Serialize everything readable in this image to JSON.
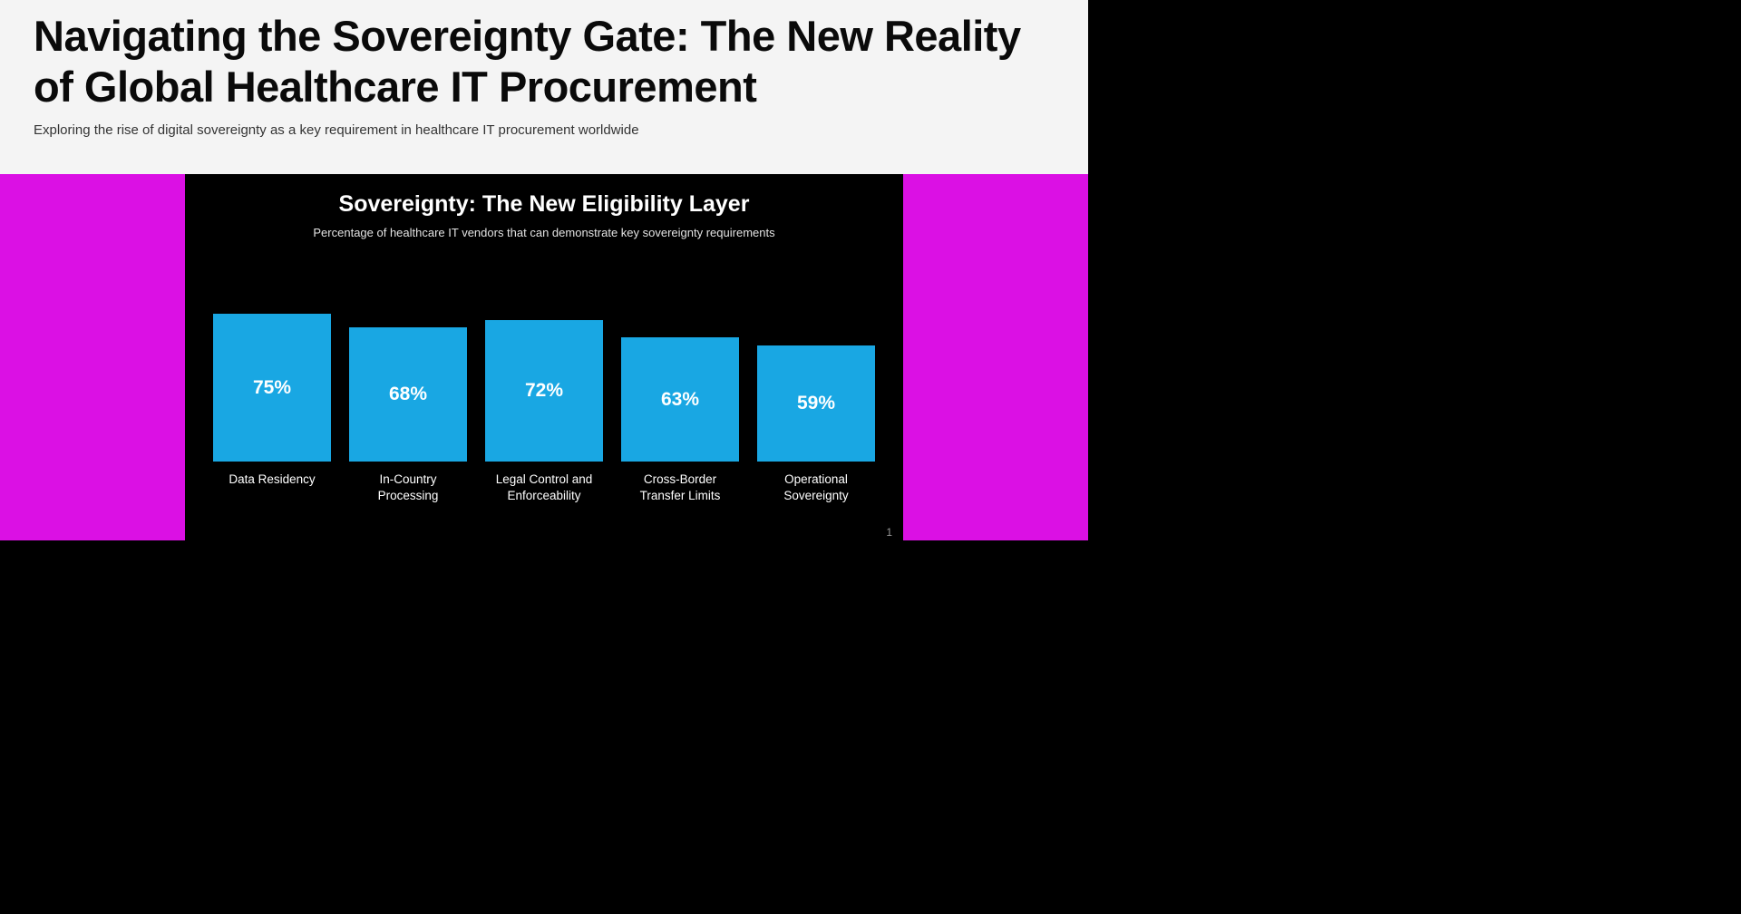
{
  "page": {
    "title": "Navigating the Sovereignty Gate: The New Reality of Global Healthcare IT Procurement",
    "subtitle": "Exploring the rise of digital sovereignty as a key requirement in healthcare IT procurement worldwide",
    "page_number": "1"
  },
  "chart_data": {
    "type": "bar",
    "title": "Sovereignty: The New Eligibility Layer",
    "subtitle": "Percentage of healthcare IT vendors that can demonstrate key sovereignty requirements",
    "categories": [
      "Data Residency",
      "In-Country Processing",
      "Legal Control and Enforceability",
      "Cross-Border Transfer Limits",
      "Operational Sovereignty"
    ],
    "values": [
      75,
      68,
      72,
      63,
      59
    ],
    "value_labels": [
      "75%",
      "68%",
      "72%",
      "63%",
      "59%"
    ],
    "ylim": [
      0,
      100
    ],
    "grid": false,
    "legend": false,
    "bar_color": "#19A7E3"
  },
  "colors": {
    "header_bg": "#f4f4f4",
    "slide_bg": "#000000",
    "accent_magenta": "#DB10E4",
    "bar_blue": "#19A7E3",
    "title_text": "#0a0a0a",
    "chart_text": "#ffffff"
  }
}
